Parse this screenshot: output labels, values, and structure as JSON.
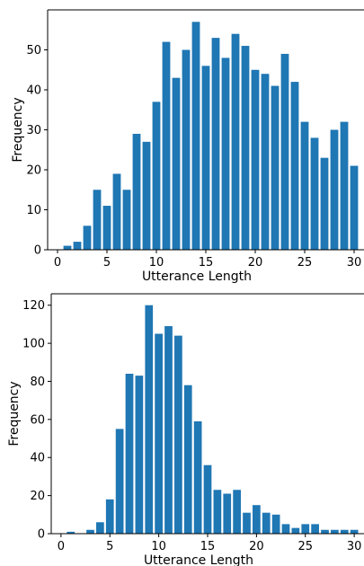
{
  "chart_data": [
    {
      "type": "bar",
      "xlabel": "Utterance Length",
      "ylabel": "Frequency",
      "xlim": [
        -1,
        31
      ],
      "ylim": [
        0,
        60
      ],
      "xticks": [
        0,
        5,
        10,
        15,
        20,
        25,
        30
      ],
      "yticks": [
        0,
        10,
        20,
        30,
        40,
        50
      ],
      "x": [
        1,
        2,
        3,
        4,
        5,
        6,
        7,
        8,
        9,
        10,
        11,
        12,
        13,
        14,
        15,
        16,
        17,
        18,
        19,
        20,
        21,
        22,
        23,
        24,
        25,
        26,
        27,
        28,
        29,
        30
      ],
      "values": [
        1,
        2,
        6,
        15,
        11,
        19,
        15,
        29,
        27,
        37,
        52,
        43,
        50,
        57,
        46,
        53,
        48,
        54,
        51,
        45,
        44,
        41,
        49,
        42,
        32,
        28,
        23,
        30,
        32,
        21
      ],
      "color": "#1f77b4"
    },
    {
      "type": "bar",
      "xlabel": "Utterance Length",
      "ylabel": "Frequency",
      "xlim": [
        -1,
        31
      ],
      "ylim": [
        0,
        126
      ],
      "xticks": [
        0,
        5,
        10,
        15,
        20,
        25,
        30
      ],
      "yticks": [
        0,
        20,
        40,
        60,
        80,
        100,
        120
      ],
      "x": [
        1,
        2,
        3,
        4,
        5,
        6,
        7,
        8,
        9,
        10,
        11,
        12,
        13,
        14,
        15,
        16,
        17,
        18,
        19,
        20,
        21,
        22,
        23,
        24,
        25,
        26,
        27,
        28,
        29,
        30
      ],
      "values": [
        1,
        0,
        2,
        6,
        18,
        55,
        84,
        83,
        120,
        105,
        109,
        104,
        78,
        59,
        36,
        23,
        21,
        23,
        11,
        15,
        11,
        10,
        5,
        3,
        5,
        5,
        2,
        2,
        2,
        2
      ],
      "color": "#1f77b4"
    }
  ]
}
